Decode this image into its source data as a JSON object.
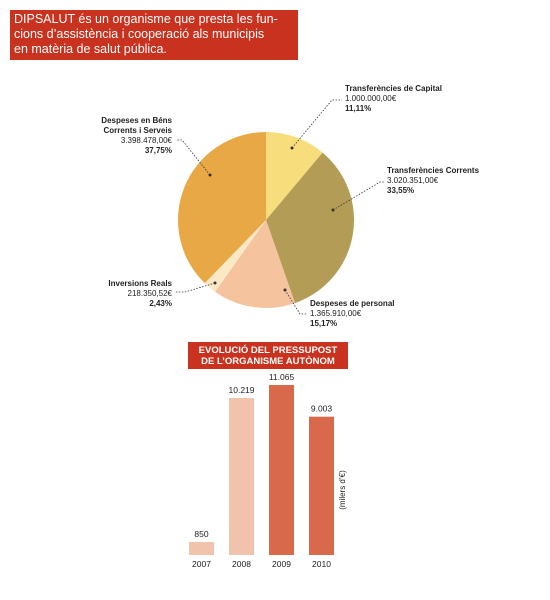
{
  "header": {
    "lines": [
      "DIPSALUT és un organisme que presta les fun-",
      "cions d’assistència i cooperació als municipis",
      "en matèria de salut pública."
    ]
  },
  "chart_data": [
    {
      "type": "pie",
      "categories": [
        "Transferències de Capital",
        "Transferències Corrents",
        "Despeses de personal",
        "Inversions Reals",
        "Despeses en Béns Corrents i Serveis"
      ],
      "values": [
        1000000.0,
        3020351.0,
        1365910.0,
        218350.52,
        3398478.0
      ],
      "value_labels": [
        "1.000.000,00€",
        "3.020.351,00€",
        "1.365.910,00€",
        "218.350,52€",
        "3.398.478,00€"
      ],
      "percentages": [
        11.11,
        33.55,
        15.17,
        2.43,
        37.75
      ],
      "percentage_labels": [
        "11,11%",
        "33,55%",
        "15,17%",
        "2,43%",
        "37,75%"
      ],
      "colors": [
        "#f8dd7c",
        "#b39c56",
        "#f5c39e",
        "#fbe8c4",
        "#e8a846"
      ]
    },
    {
      "type": "bar",
      "title_lines": [
        "EVOLUCIÓ DEL PRESSUPOST",
        "DE L’ORGANISME AUTÒNOM"
      ],
      "axis_label": "(milers d’€)",
      "categories": [
        "2007",
        "2008",
        "2009",
        "2010"
      ],
      "values": [
        850,
        10219,
        11065,
        9003
      ],
      "value_labels": [
        "850",
        "10.219",
        "11.065",
        "9.003"
      ],
      "colors": [
        "#f1c3ad",
        "#f1c3ad",
        "#d9694b",
        "#d9694b"
      ]
    }
  ]
}
